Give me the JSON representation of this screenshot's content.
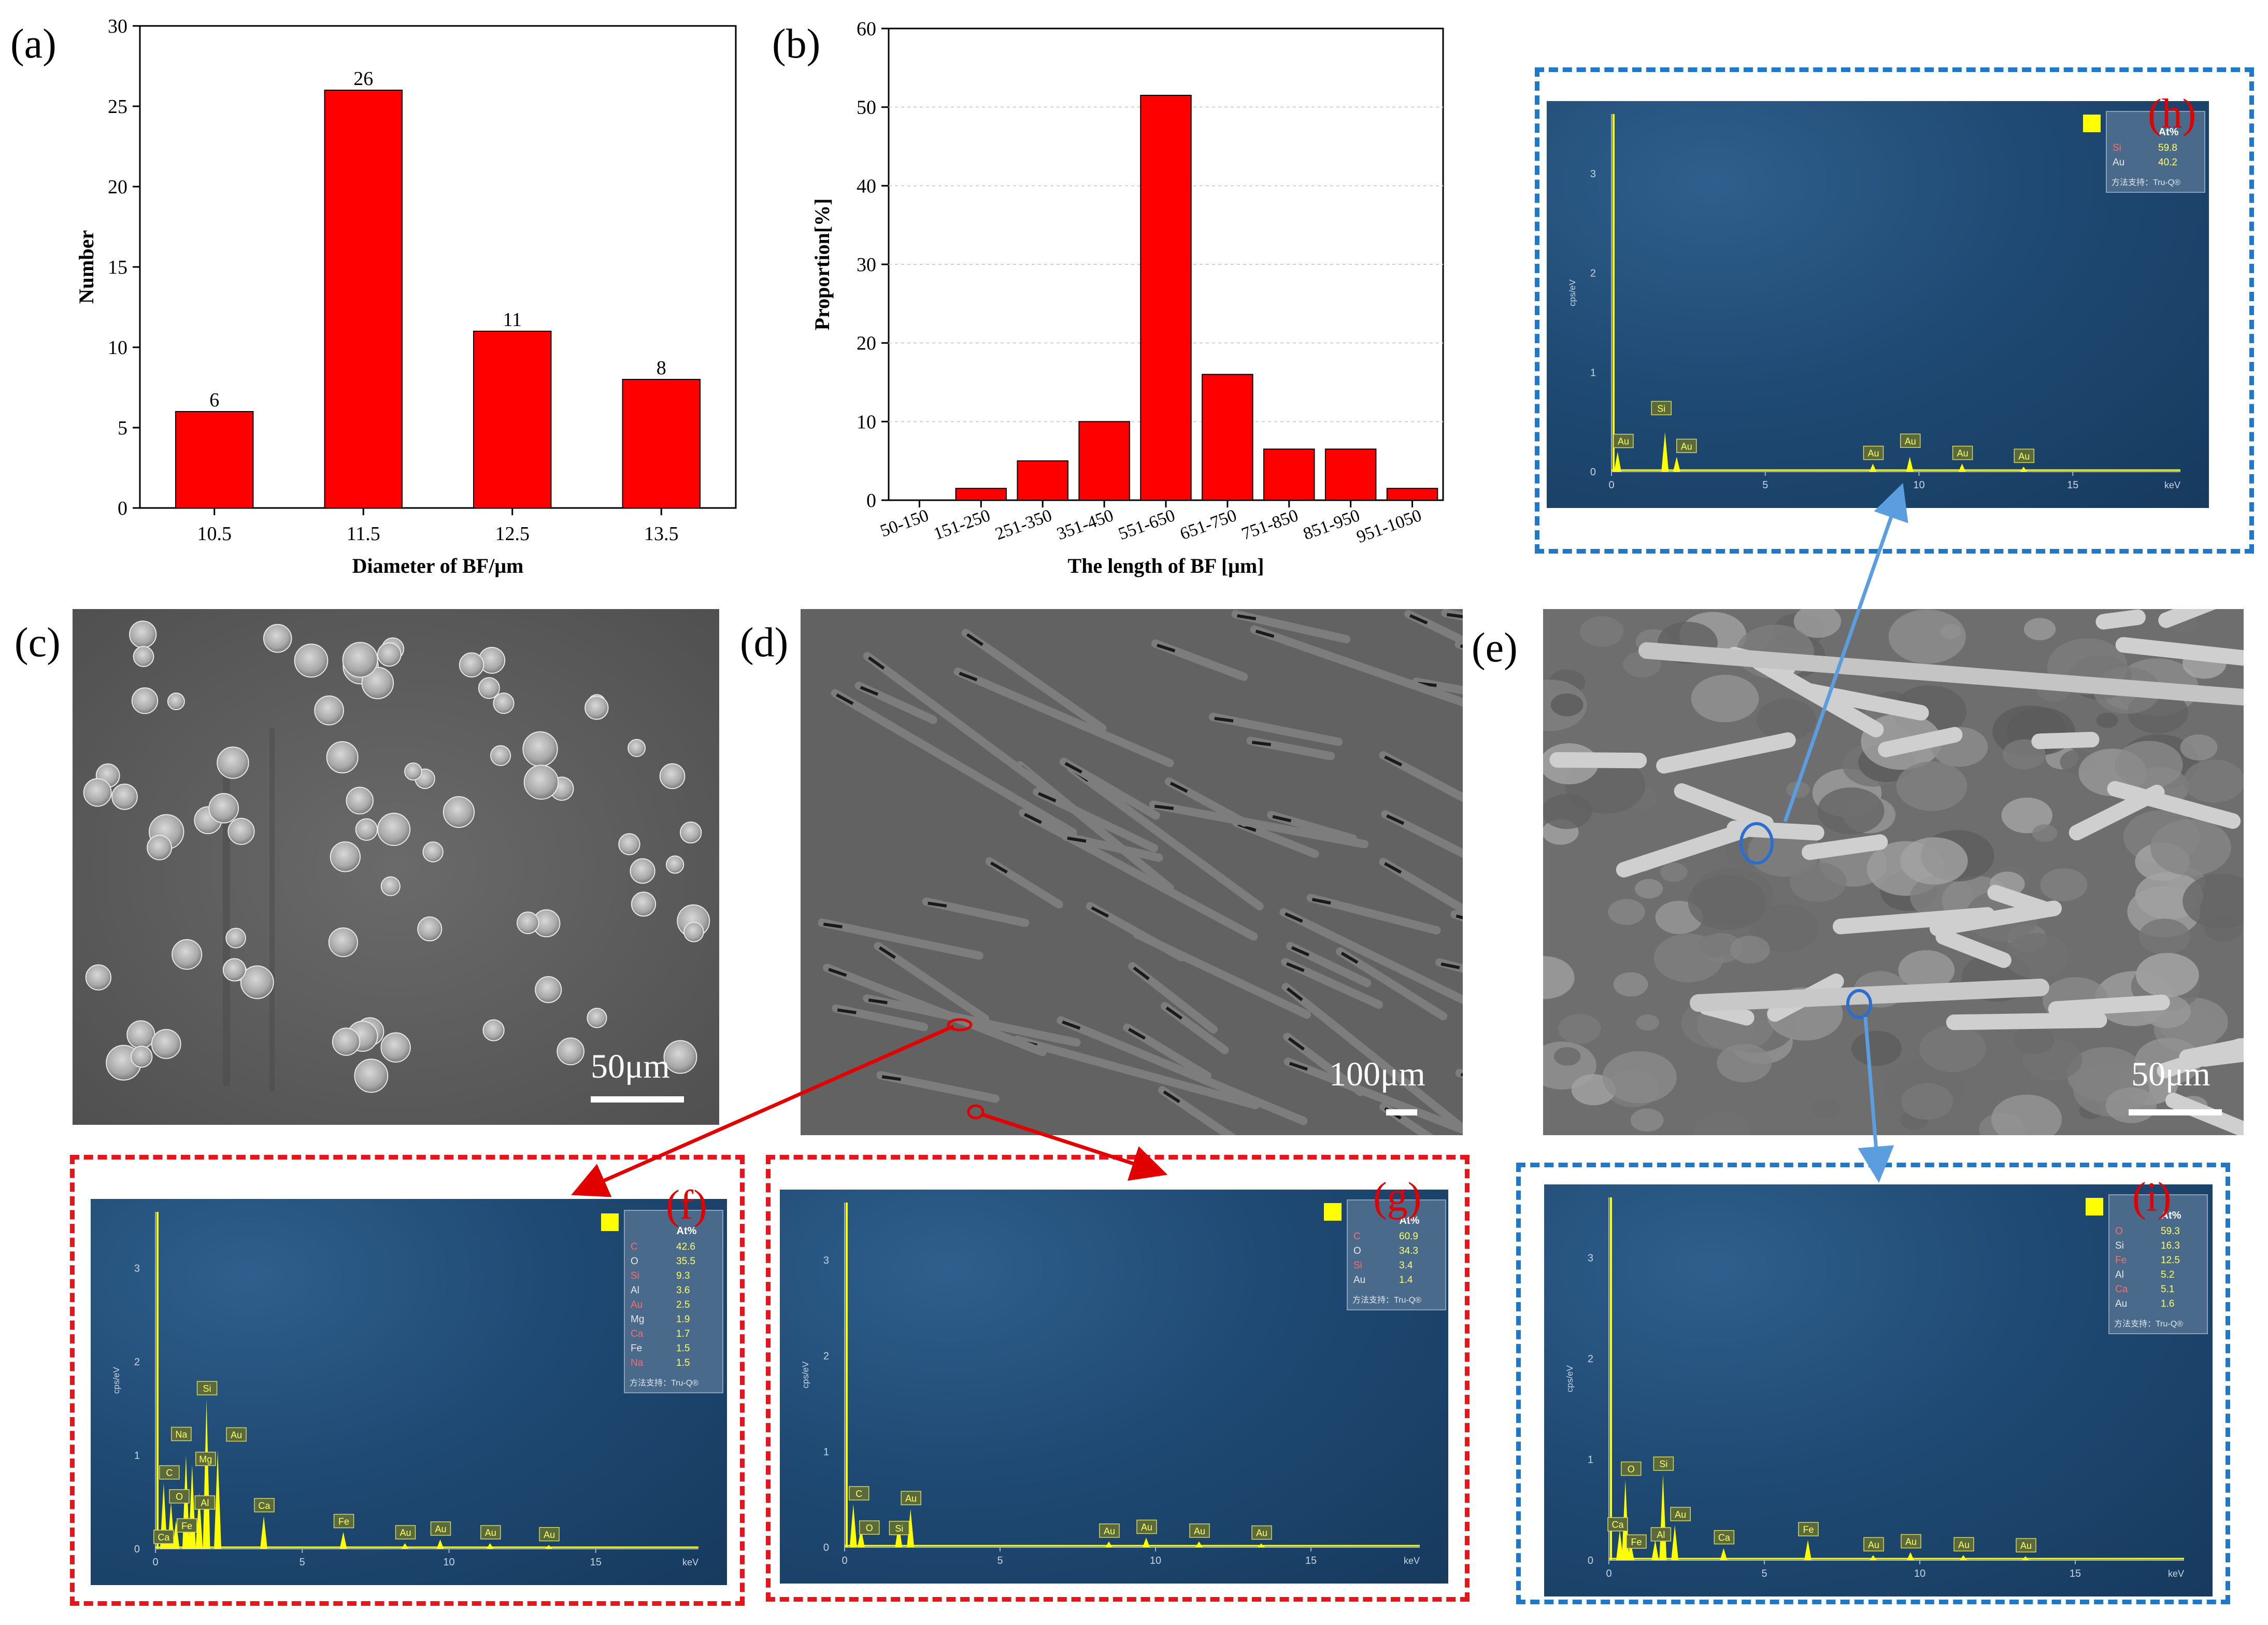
{
  "panel_labels": {
    "a": "(a)",
    "b": "(b)",
    "c": "(c)",
    "d": "(d)",
    "e": "(e)",
    "f": "(f)",
    "g": "(g)",
    "h": "(h)",
    "i": "(i)"
  },
  "chart_data": [
    {
      "type": "bar",
      "panel": "(a)",
      "xlabel": "Diameter of BF/μm",
      "ylabel": "Number",
      "categories": [
        "10.5",
        "11.5",
        "12.5",
        "13.5"
      ],
      "values": [
        6,
        26,
        11,
        8
      ],
      "data_labels": [
        "6",
        "26",
        "11",
        "8"
      ],
      "ylim": [
        0,
        30
      ],
      "yticks": [
        "0",
        "5",
        "10",
        "15",
        "20",
        "25",
        "30"
      ],
      "color": "#ff0000"
    },
    {
      "type": "bar",
      "panel": "(b)",
      "xlabel": "The length of BF [μm]",
      "ylabel": "Proportion[%]",
      "categories": [
        "50-150",
        "151-250",
        "251-350",
        "351-450",
        "551-650",
        "651-750",
        "751-850",
        "851-950",
        "951-1050"
      ],
      "values": [
        0,
        1.5,
        5,
        10,
        51.5,
        16,
        6.5,
        6.5,
        1.5
      ],
      "ylim": [
        0,
        60
      ],
      "yticks": [
        "0",
        "10",
        "20",
        "30",
        "40",
        "50",
        "60"
      ],
      "color": "#ff0000"
    }
  ],
  "sem": {
    "c_scale": "50μm",
    "d_scale": "100μm",
    "e_scale": "50μm"
  },
  "eds_common": {
    "xticks": [
      "0",
      "5",
      "10",
      "15"
    ],
    "unit_x": "keV",
    "unit_y": "cps/eV",
    "legend_header": "At%",
    "legend_footer": "方法支持：Tru-Q®"
  },
  "eds_h": {
    "yticks": [
      "0",
      "1",
      "2",
      "3"
    ],
    "legend": [
      {
        "el": "Si",
        "val": "59.8"
      },
      {
        "el": "Au",
        "val": "40.2"
      }
    ],
    "peaks": [
      "Au",
      "Si",
      "Au",
      "Au",
      "Au",
      "Au",
      "Au"
    ]
  },
  "eds_f": {
    "yticks": [
      "0",
      "1",
      "2",
      "3"
    ],
    "legend": [
      {
        "el": "C",
        "val": "42.6"
      },
      {
        "el": "O",
        "val": "35.5"
      },
      {
        "el": "Si",
        "val": "9.3"
      },
      {
        "el": "Al",
        "val": "3.6"
      },
      {
        "el": "Au",
        "val": "2.5"
      },
      {
        "el": "Mg",
        "val": "1.9"
      },
      {
        "el": "Ca",
        "val": "1.7"
      },
      {
        "el": "Fe",
        "val": "1.5"
      },
      {
        "el": "Na",
        "val": "1.5"
      }
    ],
    "peaks": [
      "Si",
      "Na",
      "Mg",
      "Au",
      "C",
      "O",
      "Fe",
      "Al",
      "Ca",
      "Ca",
      "Fe",
      "Au",
      "Au",
      "Au",
      "Au"
    ]
  },
  "eds_g": {
    "yticks": [
      "0",
      "1",
      "2",
      "3"
    ],
    "legend": [
      {
        "el": "C",
        "val": "60.9"
      },
      {
        "el": "O",
        "val": "34.3"
      },
      {
        "el": "Si",
        "val": "3.4"
      },
      {
        "el": "Au",
        "val": "1.4"
      }
    ],
    "peaks": [
      "C",
      "O",
      "Au",
      "Si",
      "Au",
      "Au",
      "Au",
      "Au"
    ]
  },
  "eds_i": {
    "yticks": [
      "0",
      "1",
      "2",
      "3"
    ],
    "legend": [
      {
        "el": "O",
        "val": "59.3"
      },
      {
        "el": "Si",
        "val": "16.3"
      },
      {
        "el": "Fe",
        "val": "12.5"
      },
      {
        "el": "Al",
        "val": "5.2"
      },
      {
        "el": "Ca",
        "val": "5.1"
      },
      {
        "el": "Au",
        "val": "1.6"
      }
    ],
    "peaks": [
      "O",
      "Si",
      "Ca",
      "Fe",
      "Al",
      "Au",
      "Ca",
      "Fe",
      "Au",
      "Au",
      "Au",
      "Au"
    ]
  },
  "colors": {
    "bar": "#ff0000",
    "red_dash": "#e8141c",
    "blue_dash": "#1f78c8",
    "arrow_red": "#e00000",
    "arrow_blue": "#5b9ee0",
    "spectrum": "#ffff00"
  }
}
